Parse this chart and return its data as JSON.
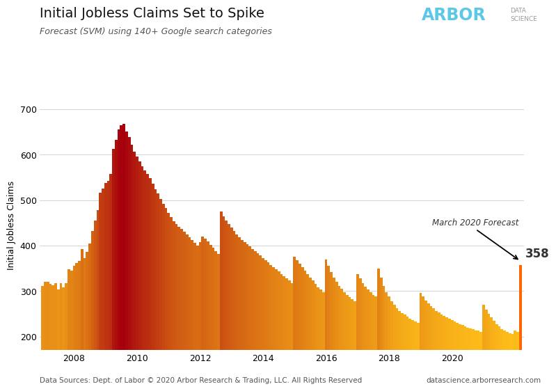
{
  "title": "Initial Jobless Claims Set to Spike",
  "subtitle": "Forecast (SVM) using 140+ Google search categories",
  "ylabel": "Initial Jobless Claims",
  "footer_left": "Data Sources: Dept. of Labor © 2020 Arbor Research & Trading, LLC. All Rights Reserved",
  "footer_right": "datascience.arborresearch.com",
  "ylim": [
    170,
    720
  ],
  "yticks": [
    200,
    300,
    400,
    500,
    600,
    700
  ],
  "annotation_text": "March 2020 Forecast",
  "annotation_value": "358",
  "background_color": "#ffffff",
  "arbor_color": "#5bc8e8",
  "title_fontsize": 14,
  "subtitle_fontsize": 9,
  "axis_fontsize": 9,
  "footer_fontsize": 7.5,
  "ijc_values": [
    311,
    321,
    320,
    316,
    313,
    318,
    303,
    318,
    308,
    318,
    348,
    345,
    355,
    362,
    366,
    393,
    372,
    386,
    404,
    432,
    455,
    478,
    517,
    526,
    538,
    542,
    557,
    613,
    633,
    655,
    665,
    667,
    651,
    638,
    622,
    606,
    596,
    585,
    575,
    565,
    557,
    548,
    536,
    524,
    515,
    503,
    492,
    482,
    472,
    463,
    454,
    448,
    442,
    436,
    430,
    424,
    418,
    412,
    406,
    400,
    408,
    420,
    415,
    409,
    402,
    395,
    388,
    382,
    475,
    465,
    455,
    448,
    440,
    432,
    425,
    418,
    412,
    408,
    403,
    398,
    393,
    388,
    383,
    378,
    373,
    368,
    363,
    358,
    353,
    348,
    343,
    338,
    333,
    328,
    323,
    318,
    375,
    368,
    361,
    353,
    345,
    338,
    330,
    323,
    316,
    309,
    303,
    298,
    370,
    355,
    342,
    330,
    320,
    312,
    305,
    298,
    292,
    287,
    282,
    278,
    338,
    328,
    318,
    310,
    303,
    297,
    292,
    288,
    350,
    330,
    312,
    298,
    288,
    278,
    270,
    263,
    257,
    252,
    248,
    244,
    240,
    236,
    233,
    230,
    296,
    288,
    280,
    273,
    267,
    262,
    257,
    253,
    249,
    245,
    242,
    239,
    236,
    233,
    230,
    227,
    225,
    222,
    220,
    218,
    216,
    214,
    213,
    211,
    270,
    260,
    250,
    242,
    235,
    228,
    222,
    217,
    213,
    210,
    208,
    206,
    214,
    210,
    358
  ],
  "color_low": [
    1.0,
    0.75,
    0.1
  ],
  "color_high": [
    0.65,
    0.0,
    0.05
  ],
  "color_forecast": "#FF6600",
  "color_threshold_low": 200,
  "color_threshold_high": 667
}
